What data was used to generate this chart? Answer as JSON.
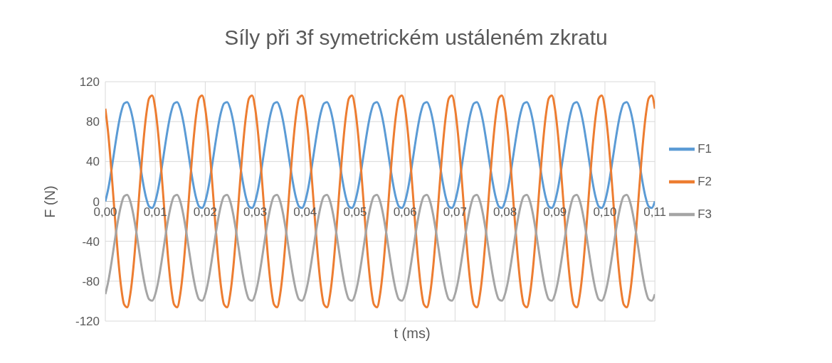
{
  "chart_data": {
    "type": "line",
    "title": "Síly při 3f symetrickém ustáleném zkratu",
    "xlabel": "t (ms)",
    "ylabel": "F (N)",
    "x": [
      0,
      0.000625,
      0.00125,
      0.001875,
      0.0025,
      0.003125,
      0.00375,
      0.004375,
      0.005,
      0.005625,
      0.00625,
      0.006875,
      0.0075,
      0.008125,
      0.00875,
      0.009375,
      0.01,
      0.010625,
      0.01125,
      0.011875,
      0.0125,
      0.013125,
      0.01375,
      0.014375,
      0.015,
      0.015625,
      0.01625,
      0.016875,
      0.0175,
      0.018125,
      0.01875,
      0.019375,
      0.02,
      0.020625,
      0.02125,
      0.021875,
      0.0225,
      0.023125,
      0.02375,
      0.024375,
      0.025,
      0.025625,
      0.02625,
      0.026875,
      0.0275,
      0.028125,
      0.02875,
      0.029375,
      0.03,
      0.030625,
      0.03125,
      0.031875,
      0.0325,
      0.033125,
      0.03375,
      0.034375,
      0.035,
      0.035625,
      0.03625,
      0.036875,
      0.0375,
      0.038125,
      0.03875,
      0.039375,
      0.04,
      0.040625,
      0.04125,
      0.041875,
      0.0425,
      0.043125,
      0.04375,
      0.044375,
      0.045,
      0.045625,
      0.04625,
      0.046875,
      0.0475,
      0.048125,
      0.04875,
      0.049375,
      0.05,
      0.050625,
      0.05125,
      0.051875,
      0.0525,
      0.053125,
      0.05375,
      0.054375,
      0.055,
      0.055625,
      0.05625,
      0.056875,
      0.0575,
      0.058125,
      0.05875,
      0.059375,
      0.06,
      0.060625,
      0.06125,
      0.061875,
      0.0625,
      0.063125,
      0.06375,
      0.064375,
      0.065,
      0.065625,
      0.06625,
      0.066875,
      0.0675,
      0.068125,
      0.06875,
      0.069375,
      0.07,
      0.070625,
      0.07125,
      0.071875,
      0.0725,
      0.073125,
      0.07375,
      0.074375,
      0.075,
      0.075625,
      0.07625,
      0.076875,
      0.0775,
      0.078125,
      0.07875,
      0.079375,
      0.08,
      0.080625,
      0.08125,
      0.081875,
      0.0825,
      0.083125,
      0.08375,
      0.084375,
      0.085,
      0.085625,
      0.08625,
      0.086875,
      0.0875,
      0.088125,
      0.08875,
      0.089375,
      0.09,
      0.090625,
      0.09125,
      0.091875,
      0.0925,
      0.093125,
      0.09375,
      0.094375,
      0.095,
      0.095625,
      0.09625,
      0.096875,
      0.0975,
      0.098125,
      0.09875,
      0.099375,
      0.1,
      0.100625,
      0.10125,
      0.101875,
      0.1025,
      0.103125,
      0.10375,
      0.104375,
      0.105,
      0.105625,
      0.10625,
      0.106875,
      0.1075,
      0.108125,
      0.10875,
      0.109375,
      0.11
    ],
    "series": [
      {
        "name": "F1",
        "color": "#5b9bd5",
        "values": [
          0,
          13.6,
          32.3,
          53.1,
          72.9,
          88.7,
          98.1,
          99.6,
          93,
          79.4,
          60.7,
          39.9,
          20.1,
          4.3,
          -5.1,
          -6.6,
          0,
          13.6,
          32.3,
          53.1,
          72.9,
          88.7,
          98.1,
          99.6,
          93,
          79.4,
          60.7,
          39.9,
          20.1,
          4.3,
          -5.1,
          -6.6,
          0,
          13.6,
          32.3,
          53.1,
          72.9,
          88.7,
          98.1,
          99.6,
          93,
          79.4,
          60.7,
          39.9,
          20.1,
          4.3,
          -5.1,
          -6.6,
          0,
          13.6,
          32.3,
          53.1,
          72.9,
          88.7,
          98.1,
          99.6,
          93,
          79.4,
          60.7,
          39.9,
          20.1,
          4.3,
          -5.1,
          -6.6,
          0,
          13.6,
          32.3,
          53.1,
          72.9,
          88.7,
          98.1,
          99.6,
          93,
          79.4,
          60.7,
          39.9,
          20.1,
          4.3,
          -5.1,
          -6.6,
          0,
          13.6,
          32.3,
          53.1,
          72.9,
          88.7,
          98.1,
          99.6,
          93,
          79.4,
          60.7,
          39.9,
          20.1,
          4.3,
          -5.1,
          -6.6,
          0,
          13.6,
          32.3,
          53.1,
          72.9,
          88.7,
          98.1,
          99.6,
          93,
          79.4,
          60.7,
          39.9,
          20.1,
          4.3,
          -5.1,
          -6.6,
          0,
          13.6,
          32.3,
          53.1,
          72.9,
          88.7,
          98.1,
          99.6,
          93,
          79.4,
          60.7,
          39.9,
          20.1,
          4.3,
          -5.1,
          -6.6,
          0,
          13.6,
          32.3,
          53.1,
          72.9,
          88.7,
          98.1,
          99.6,
          93,
          79.4,
          60.7,
          39.9,
          20.1,
          4.3,
          -5.1,
          -6.6,
          0,
          13.6,
          32.3,
          53.1,
          72.9,
          88.7,
          98.1,
          99.6,
          93,
          79.4,
          60.7,
          39.9,
          20.1,
          4.3,
          -5.1,
          -6.6,
          0,
          13.6,
          32.3,
          53.1,
          72.9,
          88.7,
          98.1,
          99.6,
          93,
          79.4,
          60.7,
          39.9,
          20.1,
          4.3,
          -5.1,
          -6.6,
          0
        ]
      },
      {
        "name": "F2",
        "color": "#ed7d31",
        "values": [
          93,
          65.7,
          28.4,
          -13.2,
          -52.9,
          -84.4,
          -103.2,
          -106.2,
          -93,
          -65.7,
          -28.4,
          13.2,
          52.9,
          84.4,
          103.2,
          106.2,
          93,
          65.7,
          28.4,
          -13.2,
          -52.9,
          -84.4,
          -103.2,
          -106.2,
          -93,
          -65.7,
          -28.4,
          13.2,
          52.9,
          84.4,
          103.2,
          106.2,
          93,
          65.7,
          28.4,
          -13.2,
          -52.9,
          -84.4,
          -103.2,
          -106.2,
          -93,
          -65.7,
          -28.4,
          13.2,
          52.9,
          84.4,
          103.2,
          106.2,
          93,
          65.7,
          28.4,
          -13.2,
          -52.9,
          -84.4,
          -103.2,
          -106.2,
          -93,
          -65.7,
          -28.4,
          13.2,
          52.9,
          84.4,
          103.2,
          106.2,
          93,
          65.7,
          28.4,
          -13.2,
          -52.9,
          -84.4,
          -103.2,
          -106.2,
          -93,
          -65.7,
          -28.4,
          13.2,
          52.9,
          84.4,
          103.2,
          106.2,
          93,
          65.7,
          28.4,
          -13.2,
          -52.9,
          -84.4,
          -103.2,
          -106.2,
          -93,
          -65.7,
          -28.4,
          13.2,
          52.9,
          84.4,
          103.2,
          106.2,
          93,
          65.7,
          28.4,
          -13.2,
          -52.9,
          -84.4,
          -103.2,
          -106.2,
          -93,
          -65.7,
          -28.4,
          13.2,
          52.9,
          84.4,
          103.2,
          106.2,
          93,
          65.7,
          28.4,
          -13.2,
          -52.9,
          -84.4,
          -103.2,
          -106.2,
          -93,
          -65.7,
          -28.4,
          13.2,
          52.9,
          84.4,
          103.2,
          106.2,
          93,
          65.7,
          28.4,
          -13.2,
          -52.9,
          -84.4,
          -103.2,
          -106.2,
          -93,
          -65.7,
          -28.4,
          13.2,
          52.9,
          84.4,
          103.2,
          106.2,
          93,
          65.7,
          28.4,
          -13.2,
          -52.9,
          -84.4,
          -103.2,
          -106.2,
          -93,
          -65.7,
          -28.4,
          13.2,
          52.9,
          84.4,
          103.2,
          106.2,
          93,
          65.7,
          28.4,
          -13.2,
          -52.9,
          -84.4,
          -103.2,
          -106.2,
          -93,
          -65.7,
          -28.4,
          13.2,
          52.9,
          84.4,
          103.2,
          106.2,
          93
        ]
      },
      {
        "name": "F3",
        "color": "#a5a5a5",
        "values": [
          -93,
          -79.4,
          -60.7,
          -39.9,
          -20.1,
          -4.3,
          5.1,
          6.6,
          0,
          -13.6,
          -32.3,
          -53.1,
          -72.9,
          -88.7,
          -98.1,
          -99.6,
          -93,
          -79.4,
          -60.7,
          -39.9,
          -20.1,
          -4.3,
          5.1,
          6.6,
          0,
          -13.6,
          -32.3,
          -53.1,
          -72.9,
          -88.7,
          -98.1,
          -99.6,
          -93,
          -79.4,
          -60.7,
          -39.9,
          -20.1,
          -4.3,
          5.1,
          6.6,
          0,
          -13.6,
          -32.3,
          -53.1,
          -72.9,
          -88.7,
          -98.1,
          -99.6,
          -93,
          -79.4,
          -60.7,
          -39.9,
          -20.1,
          -4.3,
          5.1,
          6.6,
          0,
          -13.6,
          -32.3,
          -53.1,
          -72.9,
          -88.7,
          -98.1,
          -99.6,
          -93,
          -79.4,
          -60.7,
          -39.9,
          -20.1,
          -4.3,
          5.1,
          6.6,
          0,
          -13.6,
          -32.3,
          -53.1,
          -72.9,
          -88.7,
          -98.1,
          -99.6,
          -93,
          -79.4,
          -60.7,
          -39.9,
          -20.1,
          -4.3,
          5.1,
          6.6,
          0,
          -13.6,
          -32.3,
          -53.1,
          -72.9,
          -88.7,
          -98.1,
          -99.6,
          -93,
          -79.4,
          -60.7,
          -39.9,
          -20.1,
          -4.3,
          5.1,
          6.6,
          0,
          -13.6,
          -32.3,
          -53.1,
          -72.9,
          -88.7,
          -98.1,
          -99.6,
          -93,
          -79.4,
          -60.7,
          -39.9,
          -20.1,
          -4.3,
          5.1,
          6.6,
          0,
          -13.6,
          -32.3,
          -53.1,
          -72.9,
          -88.7,
          -98.1,
          -99.6,
          -93,
          -79.4,
          -60.7,
          -39.9,
          -20.1,
          -4.3,
          5.1,
          6.6,
          0,
          -13.6,
          -32.3,
          -53.1,
          -72.9,
          -88.7,
          -98.1,
          -99.6,
          -93,
          -79.4,
          -60.7,
          -39.9,
          -20.1,
          -4.3,
          5.1,
          6.6,
          0,
          -13.6,
          -32.3,
          -53.1,
          -72.9,
          -88.7,
          -98.1,
          -99.6,
          -93,
          -79.4,
          -60.7,
          -39.9,
          -20.1,
          -4.3,
          5.1,
          6.6,
          0,
          -13.6,
          -32.3,
          -53.1,
          -72.9,
          -88.7,
          -98.1,
          -99.6,
          -93
        ]
      }
    ],
    "xlim": [
      0,
      0.11
    ],
    "xticks": [
      {
        "value": 0,
        "label": "0,00"
      },
      {
        "value": 0.01,
        "label": "0,01"
      },
      {
        "value": 0.02,
        "label": "0,02"
      },
      {
        "value": 0.03,
        "label": "0,03"
      },
      {
        "value": 0.04,
        "label": "0,04"
      },
      {
        "value": 0.05,
        "label": "0,05"
      },
      {
        "value": 0.06,
        "label": "0,06"
      },
      {
        "value": 0.07,
        "label": "0,07"
      },
      {
        "value": 0.08,
        "label": "0,08"
      },
      {
        "value": 0.09,
        "label": "0,09"
      },
      {
        "value": 0.1,
        "label": "0,10"
      },
      {
        "value": 0.11,
        "label": "0,11"
      }
    ],
    "ylim": [
      -120,
      120
    ],
    "yticks": [
      -120,
      -80,
      -40,
      0,
      40,
      80,
      120
    ],
    "grid": true,
    "legend": "right",
    "marker": "none",
    "line_style": "solid"
  }
}
